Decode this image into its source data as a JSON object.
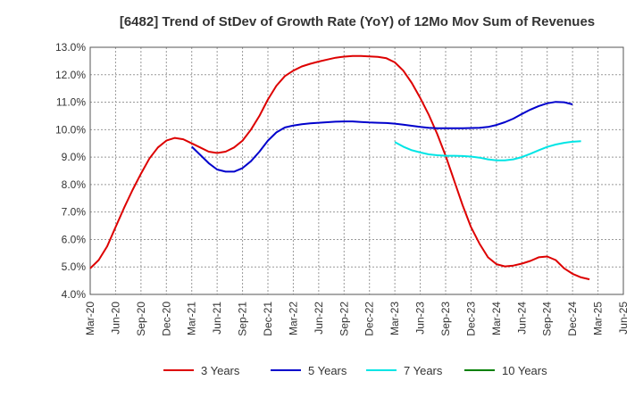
{
  "chart_data": {
    "type": "line",
    "title": "[6482]  Trend of StDev of Growth Rate (YoY) of 12Mo Mov Sum of Revenues",
    "xlabel": "",
    "ylabel": "",
    "y_unit": "%",
    "ylim": [
      4.0,
      13.0
    ],
    "y_ticks": [
      "4.0%",
      "5.0%",
      "6.0%",
      "7.0%",
      "8.0%",
      "9.0%",
      "10.0%",
      "11.0%",
      "12.0%",
      "13.0%"
    ],
    "x_start": "2020-03",
    "x_end": "2025-06",
    "x_ticks": [
      "Mar-20",
      "Jun-20",
      "Sep-20",
      "Dec-20",
      "Mar-21",
      "Jun-21",
      "Sep-21",
      "Dec-21",
      "Mar-22",
      "Jun-22",
      "Sep-22",
      "Dec-22",
      "Mar-23",
      "Jun-23",
      "Sep-23",
      "Dec-23",
      "Mar-24",
      "Jun-24",
      "Sep-24",
      "Dec-24",
      "Mar-25",
      "Jun-25"
    ],
    "grid": true,
    "legend_position": "bottom",
    "series": [
      {
        "name": "3 Years",
        "color": "#dd0000",
        "start": "2020-03",
        "values": [
          4.95,
          5.25,
          5.75,
          6.45,
          7.15,
          7.8,
          8.4,
          8.95,
          9.35,
          9.6,
          9.7,
          9.65,
          9.5,
          9.35,
          9.2,
          9.15,
          9.2,
          9.35,
          9.6,
          10.0,
          10.5,
          11.1,
          11.6,
          11.95,
          12.15,
          12.3,
          12.4,
          12.48,
          12.55,
          12.62,
          12.66,
          12.68,
          12.68,
          12.67,
          12.65,
          12.6,
          12.45,
          12.15,
          11.7,
          11.15,
          10.55,
          9.85,
          9.05,
          8.15,
          7.25,
          6.45,
          5.85,
          5.35,
          5.1,
          5.02,
          5.05,
          5.12,
          5.22,
          5.35,
          5.38,
          5.25,
          4.95,
          4.75,
          4.62,
          4.55
        ]
      },
      {
        "name": "5 Years",
        "color": "#0000cc",
        "start": "2021-03",
        "values": [
          9.38,
          9.08,
          8.78,
          8.55,
          8.47,
          8.47,
          8.6,
          8.85,
          9.2,
          9.6,
          9.9,
          10.08,
          10.15,
          10.2,
          10.23,
          10.25,
          10.27,
          10.29,
          10.3,
          10.3,
          10.28,
          10.26,
          10.25,
          10.24,
          10.22,
          10.18,
          10.14,
          10.1,
          10.07,
          10.05,
          10.05,
          10.05,
          10.05,
          10.06,
          10.07,
          10.1,
          10.17,
          10.27,
          10.4,
          10.57,
          10.73,
          10.86,
          10.96,
          11.01,
          11.0,
          10.92
        ]
      },
      {
        "name": "7 Years",
        "color": "#00e5e5",
        "start": "2023-03",
        "values": [
          9.55,
          9.38,
          9.25,
          9.17,
          9.1,
          9.07,
          9.05,
          9.05,
          9.04,
          9.02,
          8.98,
          8.92,
          8.88,
          8.88,
          8.92,
          9.0,
          9.12,
          9.25,
          9.37,
          9.46,
          9.52,
          9.56,
          9.58
        ]
      },
      {
        "name": "10 Years",
        "color": "#008000",
        "start": "2020-03",
        "values": []
      }
    ]
  }
}
